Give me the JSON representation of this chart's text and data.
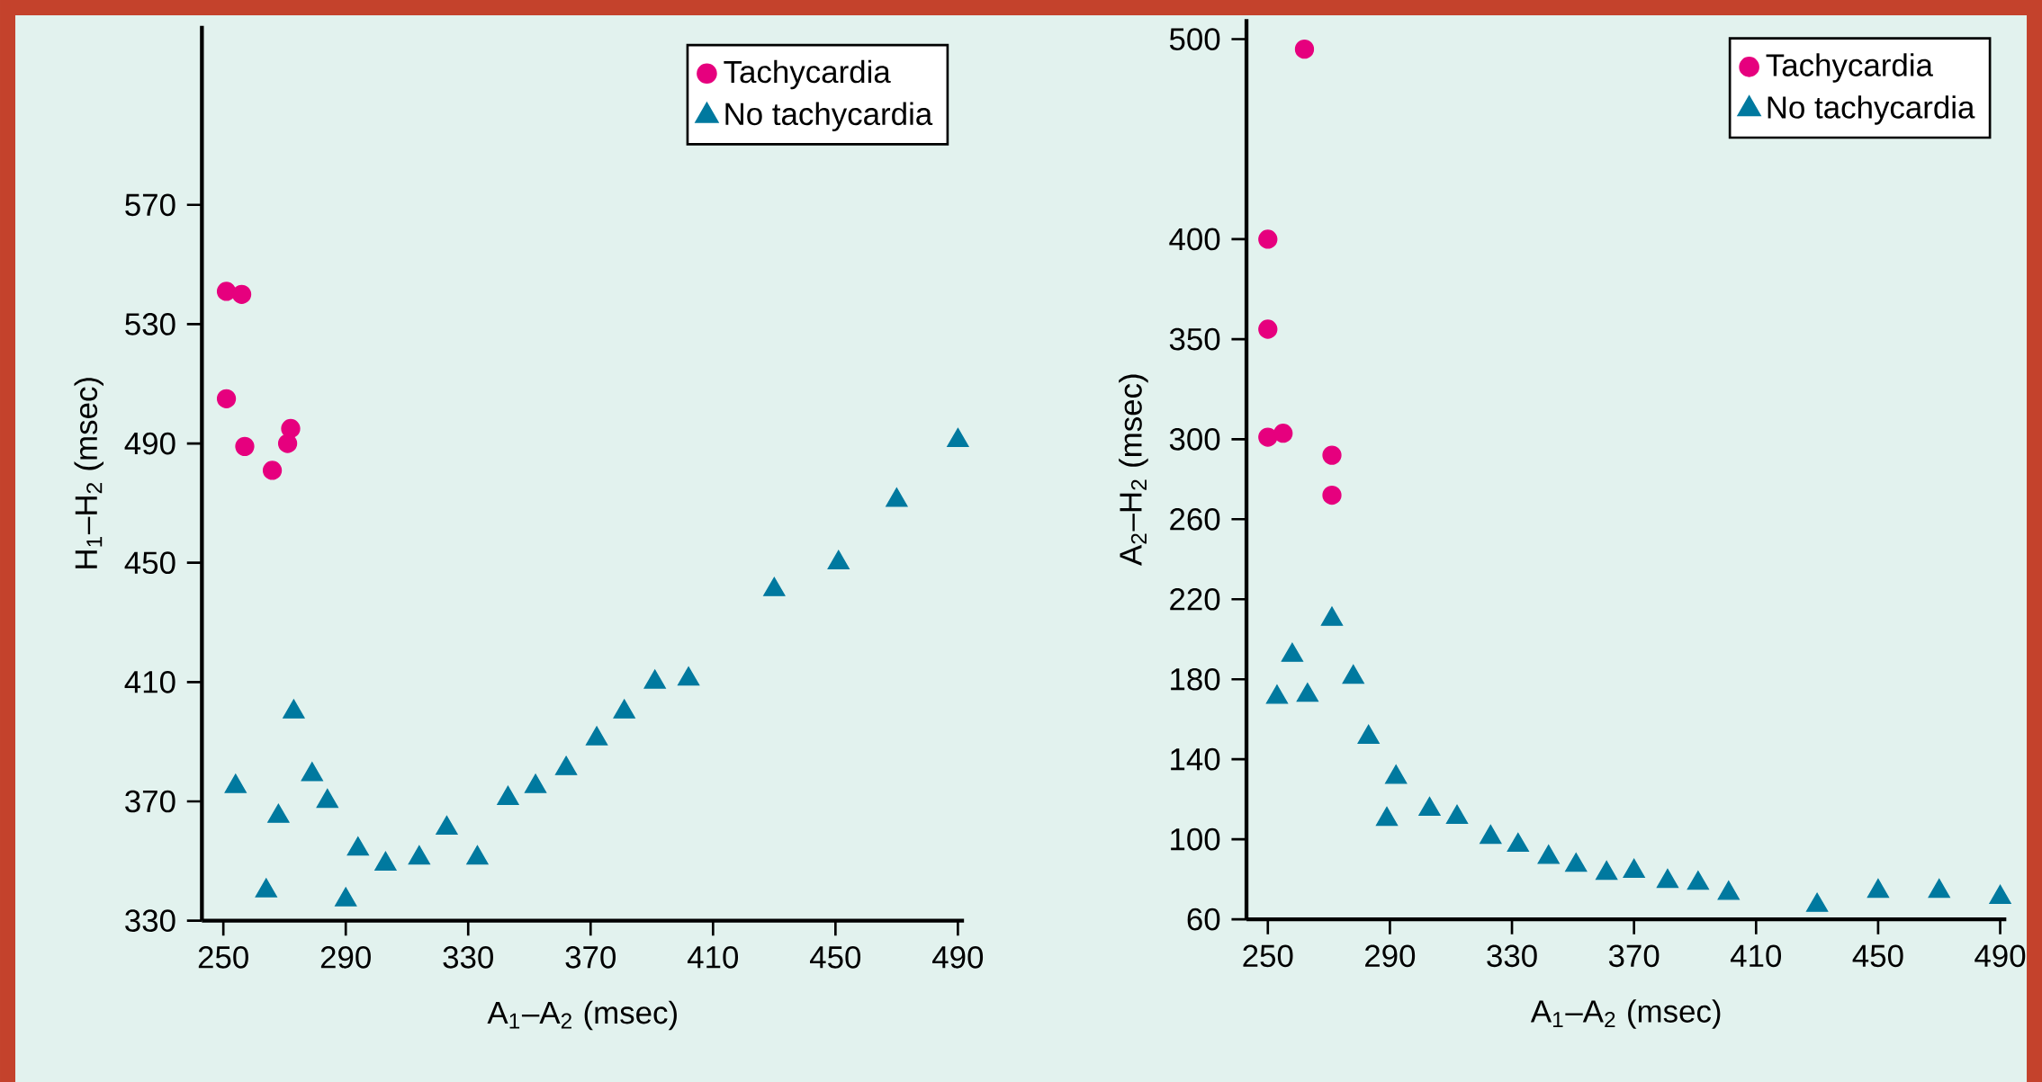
{
  "chart_data": [
    {
      "type": "scatter",
      "xlabel": "A$_{1}$–A$_{2}$ (msec)",
      "ylabel": "H$_{1}$–H$_{2}$ (msec)",
      "legend": "top right",
      "xlim": [
        243,
        492
      ],
      "ylim": [
        330,
        630
      ],
      "xticks": [
        250,
        290,
        330,
        370,
        410,
        450,
        490
      ],
      "yticks": [
        330,
        370,
        410,
        450,
        490,
        530,
        570
      ],
      "series": [
        {
          "name": "Tachycardia",
          "color": "#e6007e",
          "marker": "circle",
          "x": [
            251,
            256,
            251,
            257,
            272,
            271,
            266
          ],
          "values": [
            541,
            540,
            505,
            489,
            495,
            490,
            481
          ]
        },
        {
          "name": "No tachycardia",
          "color": "#00799f",
          "marker": "triangle",
          "x": [
            254,
            268,
            264,
            273,
            279,
            284,
            294,
            303,
            314,
            323,
            333,
            290,
            343,
            352,
            362,
            372,
            381,
            391,
            402,
            430,
            451,
            470,
            490
          ],
          "values": [
            375,
            365,
            340,
            400,
            379,
            370,
            354,
            349,
            351,
            361,
            351,
            337,
            371,
            375,
            381,
            391,
            400,
            410,
            411,
            441,
            450,
            471,
            491
          ]
        }
      ]
    },
    {
      "type": "scatter",
      "xlabel": "A$_{1}$–A$_{2}$ (msec)",
      "ylabel": "A$_{2}$–H$_{2}$ (msec)",
      "legend": "top right",
      "xlim": [
        243,
        492
      ],
      "ylim": [
        60,
        510
      ],
      "xticks": [
        250,
        290,
        330,
        370,
        410,
        450,
        490
      ],
      "yticks": [
        60,
        100,
        140,
        180,
        220,
        260,
        300,
        350,
        400,
        500
      ],
      "series": [
        {
          "name": "Tachycardia",
          "color": "#e6007e",
          "marker": "circle",
          "x": [
            250,
            255,
            271,
            271,
            250,
            250,
            262
          ],
          "values": [
            301,
            303,
            292,
            272,
            400,
            355,
            495
          ]
        },
        {
          "name": "No tachycardia",
          "color": "#00799f",
          "marker": "triangle",
          "x": [
            253,
            258,
            263,
            271,
            278,
            283,
            289,
            292,
            303,
            312,
            323,
            332,
            342,
            351,
            361,
            370,
            381,
            391,
            401,
            430,
            450,
            470,
            490
          ],
          "values": [
            171,
            192,
            172,
            210,
            181,
            151,
            110,
            131,
            115,
            111,
            101,
            97,
            91,
            87,
            83,
            84,
            79,
            78,
            73,
            67,
            74,
            74,
            71
          ]
        }
      ]
    }
  ]
}
